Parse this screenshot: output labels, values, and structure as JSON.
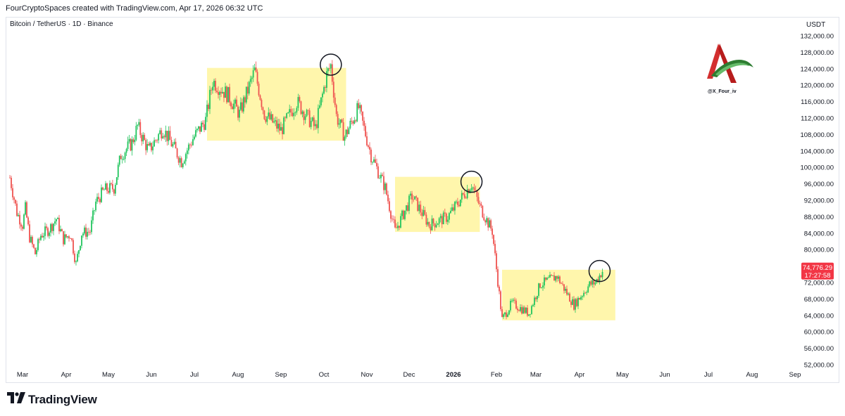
{
  "header": {
    "credit": "FourCryptoSpaces created with TradingView.com, Apr 17, 2026 06:32 UTC",
    "symbol": "Bitcoin / TetherUS · 1D · Binance",
    "unit": "USDT"
  },
  "watermark": {
    "handle": "@X_Four_iv"
  },
  "footer": {
    "brand": "TradingView",
    "icon": "tradingview-logo-icon"
  },
  "colors": {
    "up": "#26a69a",
    "up_bright": "#22c55e",
    "down": "#ef5350",
    "zone": "#fff59d",
    "price_tag": "#f23645"
  },
  "chart_data": {
    "type": "candlestick",
    "x_axis": {
      "labels": [
        "Mar",
        "Apr",
        "May",
        "Jun",
        "Jul",
        "Aug",
        "Sep",
        "Oct",
        "Nov",
        "Dec",
        "2026",
        "Feb",
        "Mar",
        "Apr",
        "May",
        "Jun",
        "Jul",
        "Aug",
        "Sep"
      ],
      "dates": [
        "2025-03-01",
        "2025-04-01",
        "2025-05-01",
        "2025-06-01",
        "2025-07-01",
        "2025-08-01",
        "2025-09-01",
        "2025-10-01",
        "2025-11-01",
        "2025-12-01",
        "2026-01-01",
        "2026-02-01",
        "2026-03-01",
        "2026-04-01",
        "2026-05-01",
        "2026-06-01",
        "2026-07-01",
        "2026-08-01",
        "2026-09-01"
      ],
      "bold": [
        "2026"
      ]
    },
    "y_axis": {
      "ylim": [
        50000,
        134000
      ],
      "ticks": [
        "132,000.00",
        "128,000.00",
        "124,000.00",
        "120,000.00",
        "116,000.00",
        "112,000.00",
        "108,000.00",
        "104,000.00",
        "100,000.00",
        "96,000.00",
        "92,000.00",
        "88,000.00",
        "84,000.00",
        "80,000.00",
        "76,000.00",
        "72,000.00",
        "68,000.00",
        "64,000.00",
        "60,000.00",
        "56,000.00",
        "52,000.00"
      ],
      "tick_values": [
        132000,
        128000,
        124000,
        120000,
        116000,
        112000,
        108000,
        104000,
        100000,
        96000,
        92000,
        88000,
        84000,
        80000,
        76000,
        72000,
        68000,
        64000,
        60000,
        56000,
        52000
      ]
    },
    "last_price": {
      "value": 74776.29,
      "label": "74,776.29",
      "countdown": "17:27:58"
    },
    "zones": [
      {
        "from": "2025-07-10",
        "to": "2025-10-17",
        "low": 106500,
        "high": 124200
      },
      {
        "from": "2025-11-21",
        "to": "2026-01-20",
        "low": 84300,
        "high": 97700
      },
      {
        "from": "2026-02-05",
        "to": "2026-04-26",
        "low": 62800,
        "high": 75100
      }
    ],
    "markers": [
      {
        "date": "2025-10-06",
        "value": 125000
      },
      {
        "date": "2026-01-14",
        "value": 96500
      },
      {
        "date": "2026-04-15",
        "value": 74800
      }
    ],
    "series": [
      {
        "date": "2025-02-20",
        "close": 97500
      },
      {
        "date": "2025-02-25",
        "close": 89000
      },
      {
        "date": "2025-03-01",
        "close": 86000
      },
      {
        "date": "2025-03-03",
        "close": 90000
      },
      {
        "date": "2025-03-06",
        "close": 83000
      },
      {
        "date": "2025-03-10",
        "close": 79000
      },
      {
        "date": "2025-03-14",
        "close": 83500
      },
      {
        "date": "2025-03-20",
        "close": 85000
      },
      {
        "date": "2025-03-25",
        "close": 87500
      },
      {
        "date": "2025-03-30",
        "close": 82500
      },
      {
        "date": "2025-04-04",
        "close": 83800
      },
      {
        "date": "2025-04-08",
        "close": 76500
      },
      {
        "date": "2025-04-12",
        "close": 84000
      },
      {
        "date": "2025-04-18",
        "close": 84500
      },
      {
        "date": "2025-04-22",
        "close": 91500
      },
      {
        "date": "2025-04-28",
        "close": 94500
      },
      {
        "date": "2025-05-05",
        "close": 95000
      },
      {
        "date": "2025-05-10",
        "close": 103000
      },
      {
        "date": "2025-05-18",
        "close": 106000
      },
      {
        "date": "2025-05-22",
        "close": 110000
      },
      {
        "date": "2025-05-30",
        "close": 104000
      },
      {
        "date": "2025-06-09",
        "close": 109500
      },
      {
        "date": "2025-06-22",
        "close": 101500
      },
      {
        "date": "2025-06-30",
        "close": 107000
      },
      {
        "date": "2025-07-09",
        "close": 111500
      },
      {
        "date": "2025-07-14",
        "close": 121000
      },
      {
        "date": "2025-07-25",
        "close": 117500
      },
      {
        "date": "2025-08-02",
        "close": 113000
      },
      {
        "date": "2025-08-13",
        "close": 123500
      },
      {
        "date": "2025-08-20",
        "close": 113000
      },
      {
        "date": "2025-09-01",
        "close": 109000
      },
      {
        "date": "2025-09-12",
        "close": 116000
      },
      {
        "date": "2025-09-25",
        "close": 109500
      },
      {
        "date": "2025-10-03",
        "close": 122500
      },
      {
        "date": "2025-10-06",
        "close": 124800
      },
      {
        "date": "2025-10-10",
        "close": 112500
      },
      {
        "date": "2025-10-16",
        "close": 107500
      },
      {
        "date": "2025-10-26",
        "close": 114500
      },
      {
        "date": "2025-11-04",
        "close": 103000
      },
      {
        "date": "2025-11-14",
        "close": 95000
      },
      {
        "date": "2025-11-21",
        "close": 84500
      },
      {
        "date": "2025-12-03",
        "close": 93000
      },
      {
        "date": "2025-12-15",
        "close": 86000
      },
      {
        "date": "2025-12-28",
        "close": 88000
      },
      {
        "date": "2026-01-14",
        "close": 96000
      },
      {
        "date": "2026-01-20",
        "close": 90500
      },
      {
        "date": "2026-01-29",
        "close": 84500
      },
      {
        "date": "2026-02-05",
        "close": 63000
      },
      {
        "date": "2026-02-12",
        "close": 67000
      },
      {
        "date": "2026-02-24",
        "close": 64500
      },
      {
        "date": "2026-03-04",
        "close": 71500
      },
      {
        "date": "2026-03-16",
        "close": 73500
      },
      {
        "date": "2026-03-28",
        "close": 66500
      },
      {
        "date": "2026-04-08",
        "close": 71500
      },
      {
        "date": "2026-04-12",
        "close": 72000
      },
      {
        "date": "2026-04-17",
        "close": 74776
      }
    ]
  }
}
